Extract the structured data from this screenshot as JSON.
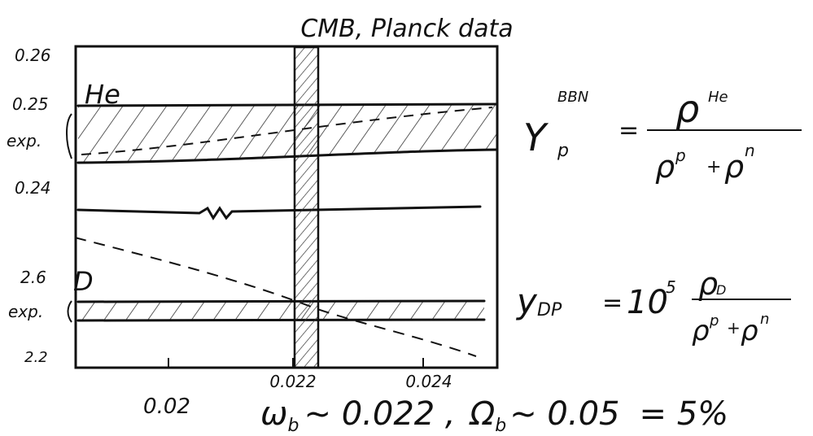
{
  "title": "CMB, Planck data",
  "y_labels": [
    "0.26",
    "0.25",
    "exp.",
    "0.24",
    "2.6",
    "exp.",
    "2.2"
  ],
  "x_labels": [
    "0.02",
    "0.022",
    "0.024"
  ],
  "band_labels": [
    "He",
    "D"
  ],
  "bottom": {
    "omega_b": "ω",
    "sub1": "b",
    "text1": "~ 0.022 ,",
    "Omega_b": "Ω",
    "sub2": "b",
    "text2": "~ 0.05",
    "text3": "= 5%"
  },
  "formula_he": {
    "lhs": "Y",
    "lhs_sup": "BBN",
    "lhs_sub": "p",
    "eq": "=",
    "num": "ρ",
    "num_sup": "He",
    "den1": "ρ",
    "den1_sup": "p",
    "plus": "+",
    "den2": "ρ",
    "den2_sup": "n"
  },
  "formula_d": {
    "lhs": "y",
    "lhs_sub": "DP",
    "eq": "=",
    "factor": "10",
    "factor_sup": "5",
    "num": "ρ",
    "num_sub": "D",
    "den1": "ρ",
    "den1_sup": "p",
    "plus": "+",
    "den2": "ρ",
    "den2_sup": "n"
  }
}
